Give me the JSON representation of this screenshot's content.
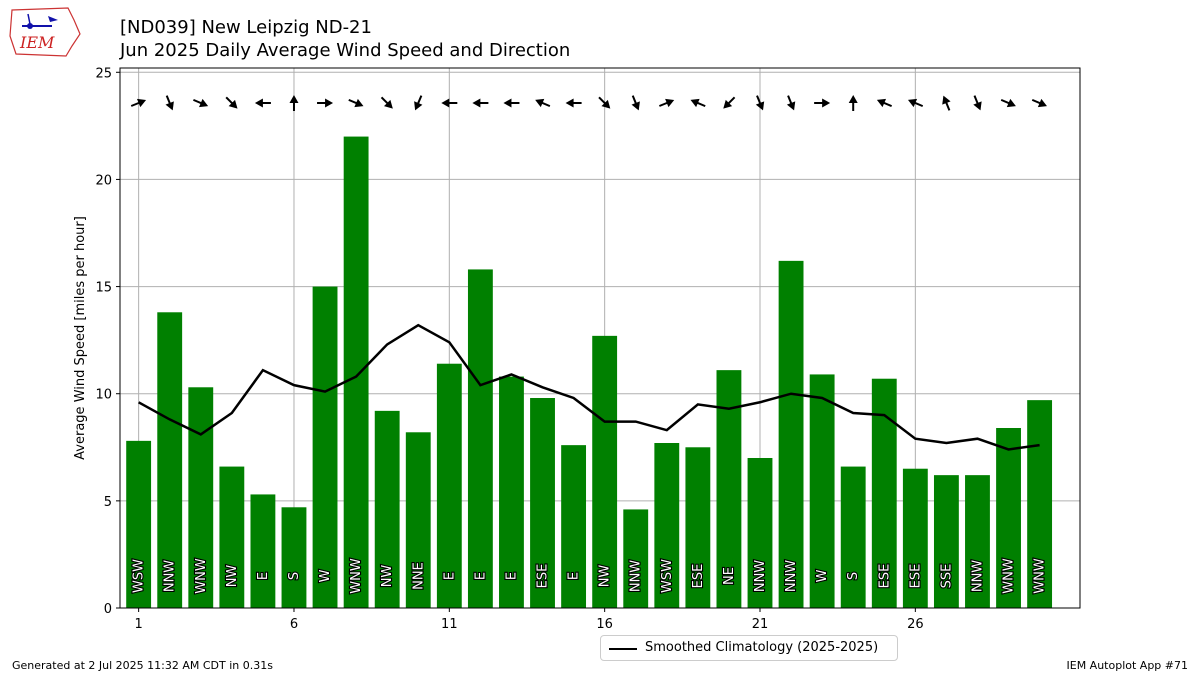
{
  "logo": {
    "text": "IEM"
  },
  "header": {
    "title_line1": "[ND039] New Leipzig  ND-21",
    "title_line2": "Jun 2025 Daily Average Wind Speed and Direction"
  },
  "footer": {
    "generated": "Generated at 2 Jul 2025 11:32 AM CDT in 0.31s",
    "app": "IEM Autoplot App #71"
  },
  "legend": {
    "label": "Smoothed Climatology (2025-2025)"
  },
  "colors": {
    "bar": "#008000",
    "climo_line": "#000000",
    "grid": "#b0b0b0"
  },
  "chart_data": {
    "type": "bar",
    "ylabel": "Average Wind Speed [miles per hour]",
    "xlabel": "",
    "ylim": [
      0,
      25.2
    ],
    "xlim": [
      0.4,
      31.3
    ],
    "x_ticks": [
      1,
      6,
      11,
      16,
      21,
      26
    ],
    "y_ticks": [
      0,
      5,
      10,
      15,
      20,
      25
    ],
    "grid": true,
    "legend_position": "bottom-center",
    "days": [
      1,
      2,
      3,
      4,
      5,
      6,
      7,
      8,
      9,
      10,
      11,
      12,
      13,
      14,
      15,
      16,
      17,
      18,
      19,
      20,
      21,
      22,
      23,
      24,
      25,
      26,
      27,
      28,
      29,
      30
    ],
    "speed": [
      7.8,
      13.8,
      10.3,
      6.6,
      5.3,
      4.7,
      15.0,
      22.0,
      9.2,
      8.2,
      11.4,
      15.8,
      10.8,
      9.8,
      7.6,
      12.7,
      4.6,
      7.7,
      7.5,
      11.1,
      7.0,
      16.2,
      10.9,
      6.6,
      10.7,
      6.5,
      6.2,
      6.2,
      8.4,
      9.7
    ],
    "direction_labels": [
      "WSW",
      "NNW",
      "WNW",
      "NW",
      "E",
      "S",
      "W",
      "WNW",
      "NW",
      "NNE",
      "E",
      "E",
      "E",
      "ESE",
      "E",
      "NW",
      "NNW",
      "WSW",
      "ESE",
      "NE",
      "NNW",
      "NNW",
      "W",
      "S",
      "ESE",
      "ESE",
      "SSE",
      "NNW",
      "WNW",
      "WNW"
    ],
    "arrow_direction_deg": [
      248,
      338,
      293,
      315,
      90,
      180,
      270,
      293,
      315,
      23,
      90,
      90,
      90,
      113,
      90,
      315,
      338,
      248,
      113,
      45,
      338,
      338,
      270,
      180,
      113,
      113,
      158,
      338,
      293,
      293
    ],
    "series": [
      {
        "name": "Smoothed Climatology (2025-2025)",
        "type": "line",
        "values": [
          9.6,
          8.8,
          8.1,
          9.1,
          11.1,
          10.4,
          10.1,
          10.8,
          12.3,
          13.2,
          12.4,
          10.4,
          10.9,
          10.3,
          9.8,
          8.7,
          8.7,
          8.3,
          9.5,
          9.3,
          9.6,
          10.0,
          9.8,
          9.1,
          9.0,
          7.9,
          7.7,
          7.9,
          7.4,
          7.6
        ]
      }
    ]
  }
}
